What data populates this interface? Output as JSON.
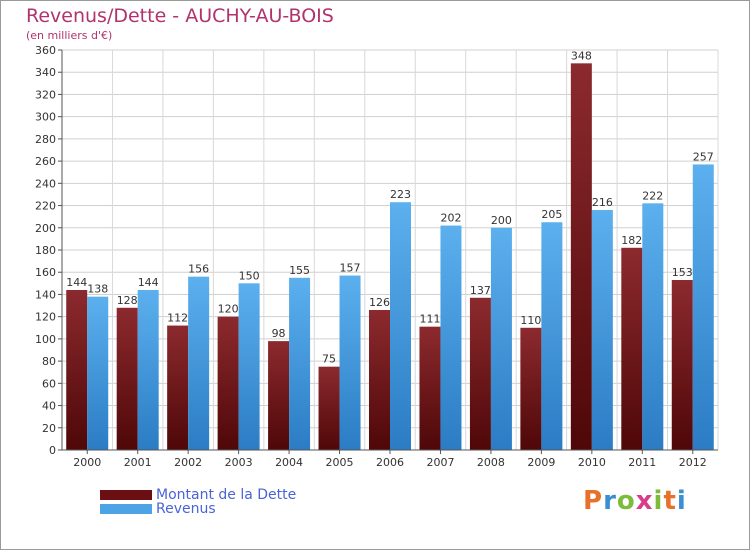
{
  "chart_data": {
    "type": "bar",
    "title": "Revenus/Dette - AUCHY-AU-BOIS",
    "subtitle": "(en milliers d'€)",
    "categories": [
      "2000",
      "2001",
      "2002",
      "2003",
      "2004",
      "2005",
      "2006",
      "2007",
      "2008",
      "2009",
      "2010",
      "2011",
      "2012"
    ],
    "series": [
      {
        "name": "Montant de la Dette",
        "color": "#7a1a1e",
        "values": [
          144,
          128,
          112,
          120,
          98,
          75,
          126,
          111,
          137,
          110,
          348,
          182,
          153
        ]
      },
      {
        "name": "Revenus",
        "color": "#4ca3e6",
        "values": [
          138,
          144,
          156,
          150,
          155,
          157,
          223,
          202,
          200,
          205,
          216,
          222,
          257
        ]
      }
    ],
    "ylim": [
      0,
      360
    ],
    "ytick_step": 20,
    "grid": true,
    "legend_position": "bottom-left"
  },
  "logo": {
    "text": "Proxiti"
  }
}
